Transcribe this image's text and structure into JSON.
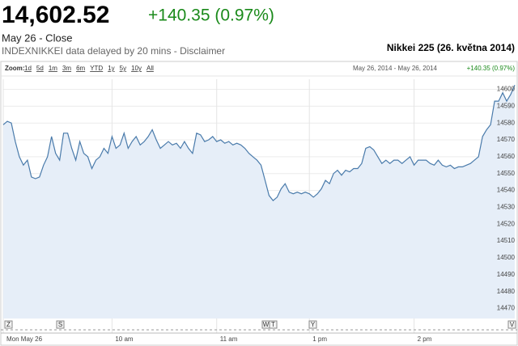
{
  "header": {
    "price": "14,602.52",
    "change": "+140.35 (0.97%)",
    "date": "May 26 - Close",
    "note": "INDEXNIKKEI data delayed by 20 mins - Disclaimer"
  },
  "toolbar": {
    "zoom_label": "Zoom:",
    "zoom_options": [
      "1d",
      "5d",
      "1m",
      "3m",
      "6m",
      "YTD",
      "1y",
      "5y",
      "10y",
      "All"
    ],
    "range": "May 26, 2014 - May 26, 2014",
    "range_change": "+140.35 (0.97%)"
  },
  "event_flags": [
    "Z",
    "S",
    "W",
    "T",
    "Y",
    "V"
  ],
  "chart_data": {
    "type": "line",
    "title": "Nikkei 225 (26. května 2014)",
    "values": [
      14579,
      14581,
      14580,
      14569,
      14560,
      14555,
      14558,
      14548,
      14547,
      14548,
      14555,
      14560,
      14572,
      14562,
      14558,
      14574,
      14574,
      14565,
      14558,
      14569,
      14562,
      14560,
      14553,
      14558,
      14560,
      14565,
      14562,
      14572,
      14565,
      14567,
      14574,
      14565,
      14569,
      14572,
      14567,
      14569,
      14572,
      14576,
      14570,
      14565,
      14567,
      14569,
      14567,
      14568,
      14565,
      14569,
      14565,
      14562,
      14574,
      14573,
      14569,
      14570,
      14572,
      14569,
      14570,
      14568,
      14569,
      14567,
      14568,
      14567,
      14565,
      14562,
      14560,
      14558,
      14555,
      14546,
      14537,
      14534,
      14536,
      14541,
      14544,
      14539,
      14538,
      14539,
      14538,
      14539,
      14538,
      14536,
      14538,
      14541,
      14546,
      14544,
      14550,
      14552,
      14549,
      14552,
      14551,
      14553,
      14553,
      14556,
      14565,
      14566,
      14564,
      14560,
      14556,
      14558,
      14556,
      14558,
      14558,
      14556,
      14558,
      14560,
      14555,
      14558,
      14558,
      14558,
      14556,
      14555,
      14558,
      14555,
      14554,
      14555,
      14553,
      14554,
      14554,
      14555,
      14556,
      14558,
      14560,
      14572,
      14576,
      14579,
      14593,
      14593,
      14598,
      14593,
      14597,
      14602.52
    ],
    "xlim": [
      0,
      127
    ],
    "xticks": [
      {
        "value": 0,
        "label": "Mon May 26"
      },
      {
        "value": 27,
        "label": "10 am"
      },
      {
        "value": 53,
        "label": "11 am"
      },
      {
        "value": 76,
        "label": "1 pm"
      },
      {
        "value": 102,
        "label": "2 pm"
      }
    ],
    "ylim": [
      14464,
      14606
    ],
    "yticks": [
      14470,
      14480,
      14490,
      14500,
      14510,
      14520,
      14530,
      14540,
      14550,
      14560,
      14570,
      14580,
      14590,
      14600
    ],
    "color": "#4a7bab",
    "fill": "#e6eef8",
    "grid": true
  }
}
